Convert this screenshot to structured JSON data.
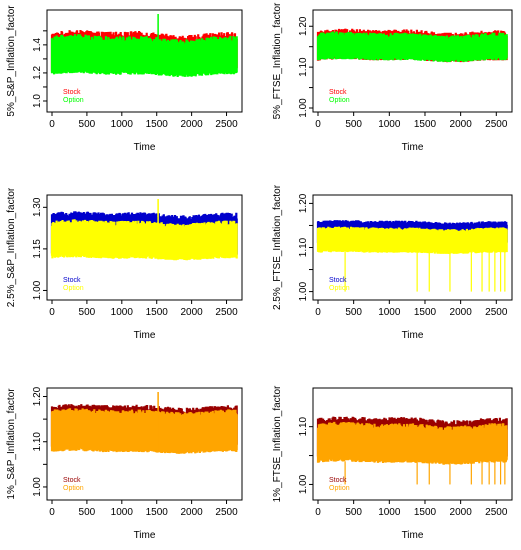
{
  "chart_data": [
    {
      "type": "line",
      "xlabel": "Time",
      "ylabel": "5%_S&P_Inflation_factor",
      "xlim": [
        0,
        2650
      ],
      "xticks": [
        0,
        500,
        1000,
        1500,
        2000,
        2500
      ],
      "ylim": [
        0.95,
        1.62
      ],
      "yticks": [
        1.0,
        1.1,
        1.2,
        1.3,
        1.4,
        1.5
      ],
      "ytick_labels": [
        "1.0",
        "",
        "1.2",
        "",
        "1.4",
        ""
      ],
      "series": [
        {
          "name": "Stock",
          "color": "#ff0000",
          "base": 1.36,
          "amplitude": 0.13,
          "low": 1.22
        },
        {
          "name": "Option",
          "color": "#00ff00",
          "base": 1.34,
          "amplitude": 0.12,
          "low": 1.2
        }
      ],
      "spike": {
        "x": 1520,
        "y": 1.62
      },
      "legend_position": "bottom-left"
    },
    {
      "type": "line",
      "xlabel": "Time",
      "ylabel": "5%_FTSE_Inflation_factor",
      "xlim": [
        0,
        2650
      ],
      "xticks": [
        0,
        500,
        1000,
        1500,
        2000,
        2500
      ],
      "ylim": [
        1.0,
        1.23
      ],
      "yticks": [
        1.0,
        1.05,
        1.1,
        1.15,
        1.2
      ],
      "ytick_labels": [
        "1.00",
        "",
        "1.10",
        "",
        "1.20"
      ],
      "series": [
        {
          "name": "Stock",
          "color": "#ff0000",
          "base": 1.155,
          "amplitude": 0.035,
          "low": 1.12
        },
        {
          "name": "Option",
          "color": "#00ff00",
          "base": 1.15,
          "amplitude": 0.033,
          "low": 1.12
        }
      ],
      "legend_position": "bottom-left"
    },
    {
      "type": "line",
      "xlabel": "Time",
      "ylabel": "2.5%_S&P_Inflation_factor",
      "xlim": [
        0,
        2650
      ],
      "xticks": [
        0,
        500,
        1000,
        1500,
        2000,
        2500
      ],
      "ylim": [
        0.98,
        1.33
      ],
      "yticks": [
        1.0,
        1.15,
        1.3
      ],
      "ytick_labels": [
        "1.00",
        "1.15",
        "1.30"
      ],
      "series": [
        {
          "name": "Stock",
          "color": "#0000cc",
          "base": 1.23,
          "amplitude": 0.05,
          "low": 1.13
        },
        {
          "name": "Option",
          "color": "#ffff00",
          "base": 1.2,
          "amplitude": 0.05,
          "low": 1.12
        }
      ],
      "spike": {
        "x": 1520,
        "y": 1.33
      },
      "legend_position": "bottom-left"
    },
    {
      "type": "line",
      "xlabel": "Time",
      "ylabel": "2.5%_FTSE_Inflation_factor",
      "xlim": [
        0,
        2650
      ],
      "xticks": [
        0,
        500,
        1000,
        1500,
        2000,
        2500
      ],
      "ylim": [
        0.99,
        1.21
      ],
      "yticks": [
        1.0,
        1.05,
        1.1,
        1.15,
        1.2
      ],
      "ytick_labels": [
        "1.00",
        "",
        "1.10",
        "",
        "1.20"
      ],
      "series": [
        {
          "name": "Stock",
          "color": "#0000cc",
          "base": 1.14,
          "amplitude": 0.02,
          "low": 1.11
        },
        {
          "name": "Option",
          "color": "#ffff00",
          "base": 1.125,
          "amplitude": 0.02,
          "low": 1.09
        }
      ],
      "dips": [
        {
          "x": 380,
          "y": 1.0
        },
        {
          "x": 1390,
          "y": 1.0
        },
        {
          "x": 1560,
          "y": 1.0
        },
        {
          "x": 1850,
          "y": 1.0
        },
        {
          "x": 2150,
          "y": 1.0
        },
        {
          "x": 2300,
          "y": 1.0
        },
        {
          "x": 2400,
          "y": 1.0
        },
        {
          "x": 2480,
          "y": 1.0
        },
        {
          "x": 2560,
          "y": 1.0
        },
        {
          "x": 2620,
          "y": 1.0
        }
      ],
      "legend_position": "bottom-left"
    },
    {
      "type": "line",
      "xlabel": "Time",
      "ylabel": "1%_S&P_Inflation_factor",
      "xlim": [
        0,
        2650
      ],
      "xticks": [
        0,
        500,
        1000,
        1500,
        2000,
        2500
      ],
      "ylim": [
        0.98,
        1.21
      ],
      "yticks": [
        1.0,
        1.05,
        1.1,
        1.15,
        1.2
      ],
      "ytick_labels": [
        "1.00",
        "",
        "1.10",
        "",
        "1.20"
      ],
      "series": [
        {
          "name": "Stock",
          "color": "#990000",
          "base": 1.15,
          "amplitude": 0.03,
          "low": 1.09
        },
        {
          "name": "Option",
          "color": "#ffa500",
          "base": 1.14,
          "amplitude": 0.03,
          "low": 1.08
        }
      ],
      "spike": {
        "x": 1520,
        "y": 1.21
      },
      "legend_position": "bottom-left"
    },
    {
      "type": "line",
      "xlabel": "Time",
      "ylabel": "1%_FTSE_Inflation_factor",
      "xlim": [
        0,
        2650
      ],
      "xticks": [
        0,
        500,
        1000,
        1500,
        2000,
        2500
      ],
      "ylim": [
        0.98,
        1.16
      ],
      "yticks": [
        1.0,
        1.05,
        1.1
      ],
      "ytick_labels": [
        "1.00",
        "",
        "1.10"
      ],
      "series": [
        {
          "name": "Stock",
          "color": "#990000",
          "base": 1.09,
          "amplitude": 0.025,
          "low": 1.05
        },
        {
          "name": "Option",
          "color": "#ffa500",
          "base": 1.08,
          "amplitude": 0.025,
          "low": 1.04
        }
      ],
      "dips": [
        {
          "x": 380,
          "y": 1.0
        },
        {
          "x": 1390,
          "y": 1.0
        },
        {
          "x": 1560,
          "y": 1.0
        },
        {
          "x": 1850,
          "y": 1.0
        },
        {
          "x": 2150,
          "y": 1.0
        },
        {
          "x": 2300,
          "y": 1.0
        },
        {
          "x": 2400,
          "y": 1.0
        },
        {
          "x": 2480,
          "y": 1.0
        },
        {
          "x": 2560,
          "y": 1.0
        },
        {
          "x": 2620,
          "y": 1.0
        }
      ],
      "legend_position": "bottom-left"
    }
  ]
}
